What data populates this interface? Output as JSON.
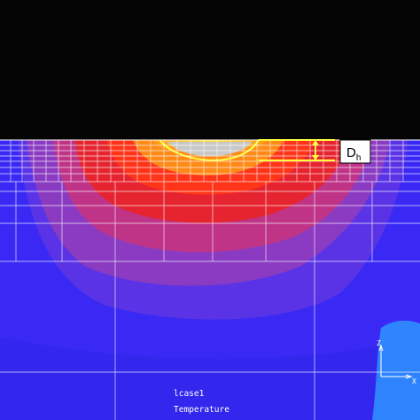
{
  "annotation": {
    "depth_symbol": "D",
    "depth_subscript": "h"
  },
  "footer": {
    "case_label": "lcase1",
    "result_label": "Temperature"
  },
  "axes": {
    "z_label": "Z",
    "x_label": "X"
  },
  "colors": {
    "background_top": "#050505",
    "cold": "#3a29f5",
    "cool": "#5a33e6",
    "mid_purple": "#8a3bc2",
    "warm": "#c03488",
    "hot": "#e6242f",
    "hotter": "#ff3418",
    "orange": "#ff8a18",
    "yellow": "#ffe820",
    "molten": "#c8c8c8",
    "mesh": "#ffffff",
    "edge_cyan": "#2f8fff"
  }
}
